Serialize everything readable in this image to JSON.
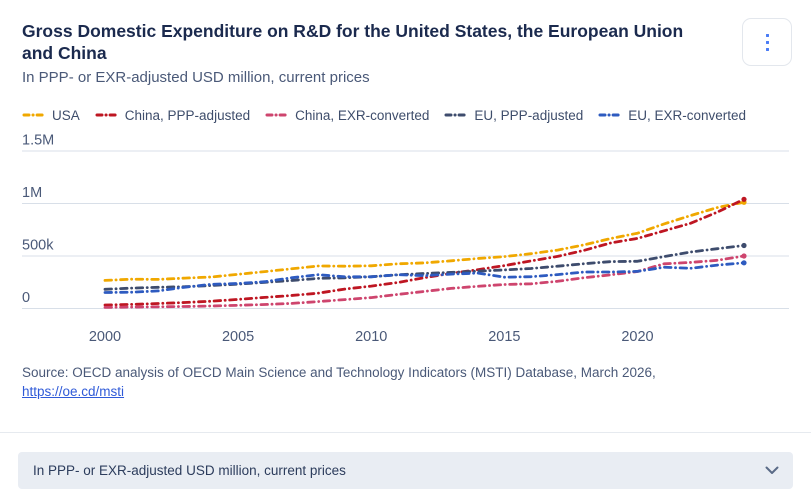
{
  "header": {
    "title": "Gross Domestic Expenditure on R&D for the United States, the European Union and China",
    "subtitle": "In PPP- or EXR-adjusted USD million, current prices"
  },
  "colors": {
    "usa": "#f0a800",
    "china_ppp": "#be1622",
    "china_exr": "#ce456e",
    "eu_ppp": "#3e4c6d",
    "eu_exr": "#2e5bc0",
    "accent_blue": "#4a7cf5",
    "link": "#2f5ad8",
    "gridline": "#d8dfe8",
    "axis_text": "#4a5978",
    "footer_bg": "#e9edf3"
  },
  "chart_data": {
    "type": "line",
    "title": "Gross Domestic Expenditure on R&D for the United States, the European Union and China",
    "subtitle": "In PPP- or EXR-adjusted USD million, current prices",
    "xlabel": "",
    "ylabel": "USD million, current prices",
    "line_style": "dash-dot",
    "grid": true,
    "legend_position": "top",
    "xlim": [
      2000,
      2024
    ],
    "ylim": [
      0,
      1500000
    ],
    "x_ticks": [
      2000,
      2005,
      2010,
      2015,
      2020
    ],
    "y_ticks": [
      {
        "value": 0,
        "label": "0"
      },
      {
        "value": 500000,
        "label": "500k"
      },
      {
        "value": 1000000,
        "label": "1M"
      },
      {
        "value": 1500000,
        "label": "1.5M"
      }
    ],
    "x": [
      2000,
      2001,
      2002,
      2003,
      2004,
      2005,
      2006,
      2007,
      2008,
      2009,
      2010,
      2011,
      2012,
      2013,
      2014,
      2015,
      2016,
      2017,
      2018,
      2019,
      2020,
      2021,
      2022,
      2023,
      2024
    ],
    "series": [
      {
        "name": "USA",
        "color": "#f0a800",
        "values": [
          268000,
          279000,
          277000,
          290000,
          300000,
          326000,
          351000,
          378000,
          405000,
          403000,
          407000,
          426000,
          434000,
          454000,
          476000,
          494000,
          522000,
          556000,
          607000,
          667000,
          717000,
          806000,
          886000,
          962000,
          1012000
        ]
      },
      {
        "name": "China, PPP-adjusted",
        "color": "#be1622",
        "values": [
          33000,
          39000,
          48000,
          57000,
          70000,
          87000,
          106000,
          124000,
          146000,
          185000,
          213000,
          248000,
          293000,
          334000,
          370000,
          409000,
          453000,
          496000,
          554000,
          625000,
          668000,
          740000,
          812000,
          918000,
          1040000
        ]
      },
      {
        "name": "China, EXR-converted",
        "color": "#ce456e",
        "values": [
          10000,
          13000,
          16000,
          19000,
          24000,
          30000,
          38000,
          49000,
          66000,
          85000,
          104000,
          134000,
          163000,
          191000,
          211000,
          229000,
          235000,
          259000,
          293000,
          321000,
          352000,
          426000,
          439000,
          459000,
          500000
        ]
      },
      {
        "name": "EU, PPP-adjusted",
        "color": "#3e4c6d",
        "values": [
          183000,
          194000,
          202000,
          208000,
          219000,
          232000,
          250000,
          267000,
          287000,
          292000,
          303000,
          321000,
          333000,
          344000,
          356000,
          368000,
          381000,
          403000,
          427000,
          447000,
          450000,
          494000,
          538000,
          570000,
          600000
        ]
      },
      {
        "name": "EU, EXR-converted",
        "color": "#2e5bc0",
        "values": [
          152000,
          155000,
          168000,
          203000,
          230000,
          238000,
          255000,
          292000,
          322000,
          302000,
          302000,
          322000,
          312000,
          328000,
          337000,
          298000,
          303000,
          323000,
          348000,
          348000,
          353000,
          393000,
          383000,
          413000,
          435000
        ]
      }
    ]
  },
  "source": {
    "text": "Source: OECD analysis of OECD Main Science and Technology Indicators (MSTI) Database, March 2026,",
    "link_label": "https://oe.cd/msti"
  },
  "footer": {
    "selected_option": "In PPP- or EXR-adjusted USD million, current prices"
  }
}
